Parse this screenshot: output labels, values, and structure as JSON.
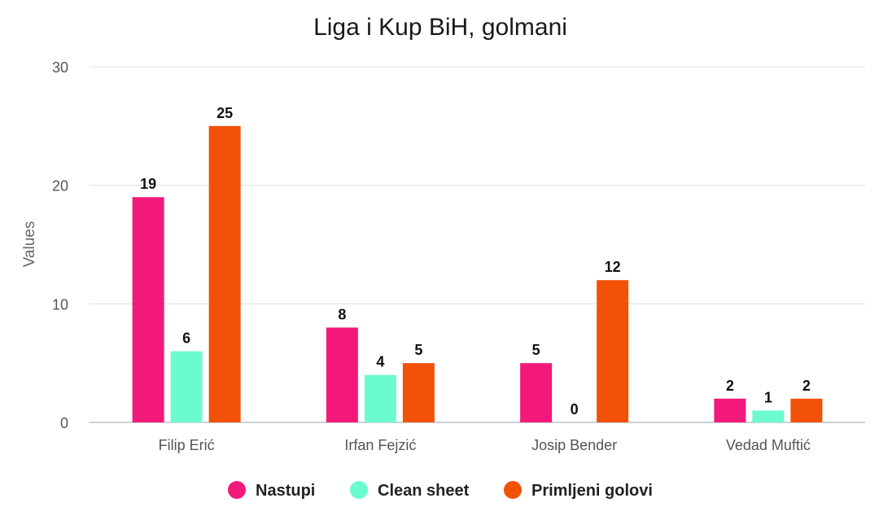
{
  "chart_data": {
    "type": "bar",
    "title": "Liga i Kup BiH, golmani",
    "xlabel": "",
    "ylabel": "Values",
    "ylim": [
      0,
      30
    ],
    "yticks": [
      0,
      10,
      20,
      30
    ],
    "grid": true,
    "legend_position": "bottom",
    "categories": [
      "Filip Erić",
      "Irfan Fejzić",
      "Josip Bender",
      "Vedad Muftić"
    ],
    "series": [
      {
        "name": "Nastupi",
        "color": "#f3197a",
        "values": [
          19,
          8,
          5,
          2
        ]
      },
      {
        "name": "Clean sheet",
        "color": "#6cfbd1",
        "values": [
          6,
          4,
          0,
          1
        ]
      },
      {
        "name": "Primljeni golovi",
        "color": "#f25207",
        "values": [
          25,
          5,
          12,
          2
        ]
      }
    ]
  }
}
